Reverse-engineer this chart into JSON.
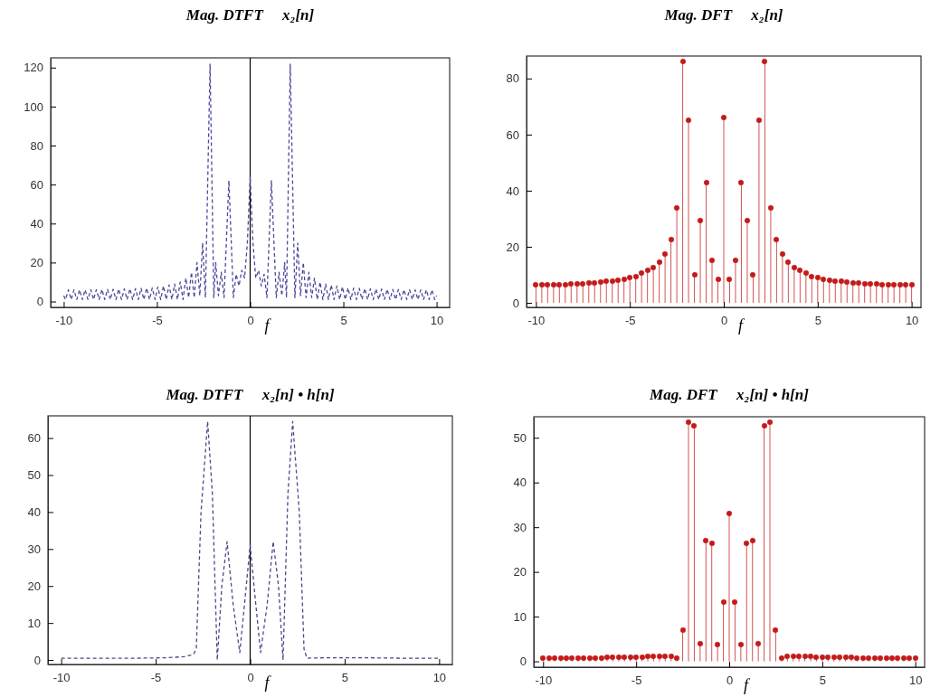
{
  "chart_data": [
    {
      "type": "line",
      "title": "Mag. DTFT     x₂[n]",
      "xlabel": "f",
      "color": "#4a4a9a",
      "line_style": "dashed",
      "grid": false,
      "xlim": [
        -10.7,
        10.7
      ],
      "ylim": [
        -3,
        125
      ],
      "xticks": [
        -10,
        -5,
        0,
        5,
        10
      ],
      "yticks": [
        0,
        20,
        40,
        60,
        80,
        100,
        120
      ],
      "ref_lines": [
        {
          "axis": "x",
          "value": 0,
          "color": "#000000"
        }
      ],
      "x": [
        -10,
        -9.9,
        -9.75,
        -9.6,
        -9.45,
        -9.3,
        -9.15,
        -9,
        -8.85,
        -8.7,
        -8.55,
        -8.4,
        -8.25,
        -8.1,
        -7.95,
        -7.8,
        -7.65,
        -7.5,
        -7.35,
        -7.2,
        -7.05,
        -6.9,
        -6.75,
        -6.6,
        -6.45,
        -6.3,
        -6.15,
        -6,
        -5.85,
        -5.7,
        -5.55,
        -5.4,
        -5.25,
        -5.1,
        -4.95,
        -4.8,
        -4.65,
        -4.5,
        -4.35,
        -4.2,
        -4.05,
        -3.9,
        -3.75,
        -3.6,
        -3.45,
        -3.3,
        -3.15,
        -3,
        -2.85,
        -2.7,
        -2.55,
        -2.4,
        -2.15,
        -1.95,
        -1.85,
        -1.7,
        -1.55,
        -1.4,
        -1.14,
        -0.9,
        -0.75,
        -0.6,
        -0.45,
        -0.3,
        -0.15,
        0,
        0.15,
        0.3,
        0.45,
        0.6,
        0.75,
        0.9,
        1.14,
        1.4,
        1.55,
        1.7,
        1.85,
        1.95,
        2.15,
        2.4,
        2.55,
        2.7,
        2.85,
        3,
        3.15,
        3.3,
        3.45,
        3.6,
        3.75,
        3.9,
        4.05,
        4.2,
        4.35,
        4.5,
        4.65,
        4.8,
        4.95,
        5.1,
        5.25,
        5.4,
        5.55,
        5.7,
        5.85,
        6,
        6.15,
        6.3,
        6.45,
        6.6,
        6.75,
        6.9,
        7.05,
        7.2,
        7.35,
        7.5,
        7.65,
        7.8,
        7.95,
        8.1,
        8.25,
        8.4,
        8.55,
        8.7,
        8.85,
        9,
        9.15,
        9.3,
        9.45,
        9.6,
        9.75,
        9.9,
        10
      ],
      "values": [
        3,
        1,
        6,
        1,
        6,
        1,
        6,
        1,
        6,
        1,
        6.1,
        1,
        6.1,
        1,
        6.2,
        1,
        6.2,
        1,
        6.3,
        1,
        6.4,
        1,
        6.5,
        1,
        6.6,
        1,
        6.7,
        1,
        6.8,
        1,
        6.9,
        1,
        7,
        1,
        7.5,
        1,
        8,
        1,
        8.5,
        1,
        9,
        1,
        10,
        1,
        12,
        2,
        15,
        2,
        20,
        3,
        30,
        2,
        122,
        2,
        20,
        3,
        15,
        2,
        62,
        2,
        14,
        8,
        16,
        12,
        30,
        64,
        30,
        12,
        16,
        8,
        14,
        2,
        62,
        2,
        15,
        3,
        20,
        2,
        122,
        2,
        30,
        3,
        20,
        2,
        15,
        2,
        12,
        1,
        10,
        1,
        9,
        1,
        8.5,
        1,
        8,
        1,
        7.5,
        1,
        7,
        1,
        6.9,
        1,
        6.8,
        1,
        6.7,
        1,
        6.6,
        1,
        6.5,
        1,
        6.4,
        1,
        6.3,
        1,
        6.2,
        1,
        6.2,
        1,
        6.1,
        1,
        6.1,
        1,
        6,
        1,
        6,
        1,
        6,
        1,
        6,
        1,
        3
      ]
    },
    {
      "type": "lollipop",
      "title": "Mag. DFT     x₂[n]",
      "xlabel": "f",
      "color": "#c41a1a",
      "marker": "circle",
      "grid": false,
      "xlim": [
        -10.5,
        10.5
      ],
      "ylim": [
        -1.6,
        88
      ],
      "xticks": [
        -10,
        -5,
        0,
        5,
        10
      ],
      "yticks": [
        0,
        20,
        40,
        60,
        80
      ],
      "x": [
        -10,
        -9.6875,
        -9.375,
        -9.0625,
        -8.75,
        -8.4375,
        -8.125,
        -7.8125,
        -7.5,
        -7.1875,
        -6.875,
        -6.5625,
        -6.25,
        -5.9375,
        -5.625,
        -5.3125,
        -5,
        -4.6875,
        -4.375,
        -4.0625,
        -3.75,
        -3.4375,
        -3.125,
        -2.8125,
        -2.5,
        -2.1875,
        -1.875,
        -1.5625,
        -1.25,
        -0.9375,
        -0.625,
        -0.3125,
        0,
        0.3125,
        0.625,
        0.9375,
        1.25,
        1.5625,
        1.875,
        2.1875,
        2.5,
        2.8125,
        3.125,
        3.4375,
        3.75,
        4.0625,
        4.375,
        4.6875,
        5,
        5.3125,
        5.625,
        5.9375,
        6.25,
        6.5625,
        6.875,
        7.1875,
        7.5,
        7.8125,
        8.125,
        8.4375,
        8.75,
        9.0625,
        9.375,
        9.6875,
        10
      ],
      "values": [
        6.4,
        6.4,
        6.4,
        6.5,
        6.5,
        6.6,
        6.7,
        6.8,
        6.9,
        7,
        7.2,
        7.4,
        7.6,
        7.8,
        8,
        8.5,
        9,
        9.5,
        10.5,
        11.5,
        12.5,
        14.5,
        17.5,
        22.5,
        34,
        86,
        65,
        10,
        29.5,
        43,
        15,
        8.5,
        66,
        8.5,
        15,
        43,
        29.5,
        10,
        65,
        86,
        34,
        22.5,
        17.5,
        14.5,
        12.5,
        11.5,
        10.5,
        9.5,
        9,
        8.5,
        8,
        7.8,
        7.6,
        7.4,
        7.2,
        7,
        6.9,
        6.8,
        6.7,
        6.6,
        6.5,
        6.5,
        6.4,
        6.4,
        6.4
      ]
    },
    {
      "type": "line",
      "title": "Mag. DTFT     x₂[n] • h[n]",
      "xlabel": "f",
      "color": "#4a4a8a",
      "line_style": "dashed",
      "grid": false,
      "xlim": [
        -10.7,
        10.7
      ],
      "ylim": [
        -1.2,
        66
      ],
      "xticks": [
        -10,
        -5,
        0,
        5,
        10
      ],
      "yticks": [
        0,
        10,
        20,
        30,
        40,
        50,
        60
      ],
      "ref_lines": [
        {
          "axis": "x",
          "value": 0,
          "color": "#000000"
        }
      ],
      "x": [
        -10,
        -8,
        -6,
        -4.5,
        -3.5,
        -3,
        -2.85,
        -2.6,
        -2.25,
        -2,
        -1.74,
        -1.5,
        -1.22,
        -0.9,
        -0.55,
        -0.3,
        0,
        0.3,
        0.55,
        0.9,
        1.22,
        1.5,
        1.74,
        2,
        2.25,
        2.6,
        2.85,
        3,
        4,
        6,
        8,
        10
      ],
      "values": [
        0.5,
        0.5,
        0.5,
        0.6,
        0.9,
        1.5,
        3,
        40,
        64.5,
        45,
        0,
        20,
        32,
        15,
        2,
        15,
        31,
        15,
        2,
        15,
        32,
        20,
        0,
        45,
        64.5,
        40,
        3,
        0.5,
        0.6,
        0.6,
        0.5,
        0.5
      ]
    },
    {
      "type": "lollipop",
      "title": "Mag. DFT     x₂[n] • h[n]",
      "xlabel": "f",
      "color": "#c41a1a",
      "marker": "circle",
      "grid": false,
      "xlim": [
        -10.5,
        10.5
      ],
      "ylim": [
        -1.3,
        54.7
      ],
      "xticks": [
        -10,
        -5,
        0,
        5,
        10
      ],
      "yticks": [
        0,
        10,
        20,
        30,
        40,
        50
      ],
      "x": [
        -10,
        -9.6875,
        -9.375,
        -9.0625,
        -8.75,
        -8.4375,
        -8.125,
        -7.8125,
        -7.5,
        -7.1875,
        -6.875,
        -6.5625,
        -6.25,
        -5.9375,
        -5.625,
        -5.3125,
        -5,
        -4.6875,
        -4.375,
        -4.0625,
        -3.75,
        -3.4375,
        -3.125,
        -2.8125,
        -2.5,
        -2.1875,
        -1.875,
        -1.5625,
        -1.25,
        -0.9375,
        -0.625,
        -0.3125,
        0,
        0.3125,
        0.625,
        0.9375,
        1.25,
        1.5625,
        1.875,
        2.1875,
        2.5,
        2.8125,
        3.125,
        3.4375,
        3.75,
        4.0625,
        4.375,
        4.6875,
        5,
        5.3125,
        5.625,
        5.9375,
        6.25,
        6.5625,
        6.875,
        7.1875,
        7.5,
        7.8125,
        8.125,
        8.4375,
        8.75,
        9.0625,
        9.375,
        9.6875,
        10
      ],
      "values": [
        0.7,
        0.7,
        0.7,
        0.7,
        0.7,
        0.7,
        0.8,
        0.8,
        0.8,
        0.8,
        0.8,
        0.9,
        0.9,
        0.9,
        0.9,
        1,
        1,
        1,
        1.1,
        1.1,
        1.2,
        1.2,
        1.1,
        0.7,
        6.9,
        53.5,
        52.6,
        4,
        27,
        26.4,
        3.8,
        13.3,
        33,
        13.3,
        3.8,
        26.4,
        27,
        4,
        52.6,
        53.5,
        6.9,
        0.7,
        1.1,
        1.2,
        1.2,
        1.1,
        1.1,
        1,
        1,
        1,
        0.9,
        0.9,
        0.9,
        0.9,
        0.8,
        0.8,
        0.8,
        0.8,
        0.8,
        0.7,
        0.7,
        0.7,
        0.7,
        0.7,
        0.7
      ]
    }
  ]
}
